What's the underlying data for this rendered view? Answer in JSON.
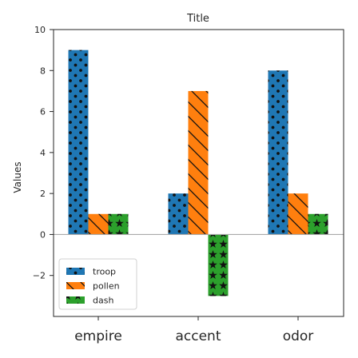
{
  "chart_data": {
    "type": "bar",
    "title": "Title",
    "xlabel": "",
    "ylabel": "Values",
    "categories": [
      "empire",
      "accent",
      "odor"
    ],
    "series": [
      {
        "name": "troop",
        "values": [
          9,
          2,
          8
        ],
        "color": "#1f77b4",
        "pattern": "dots"
      },
      {
        "name": "pollen",
        "values": [
          1,
          7,
          2
        ],
        "color": "#ff7f0e",
        "pattern": "diagonal-lines"
      },
      {
        "name": "dash",
        "values": [
          1,
          -3,
          1
        ],
        "color": "#2ca02c",
        "pattern": "stars"
      }
    ],
    "ylim": [
      -4,
      10
    ],
    "yticks": [
      -2,
      0,
      2,
      4,
      6,
      8,
      10
    ],
    "grid": false,
    "legend_position": "lower-left"
  }
}
